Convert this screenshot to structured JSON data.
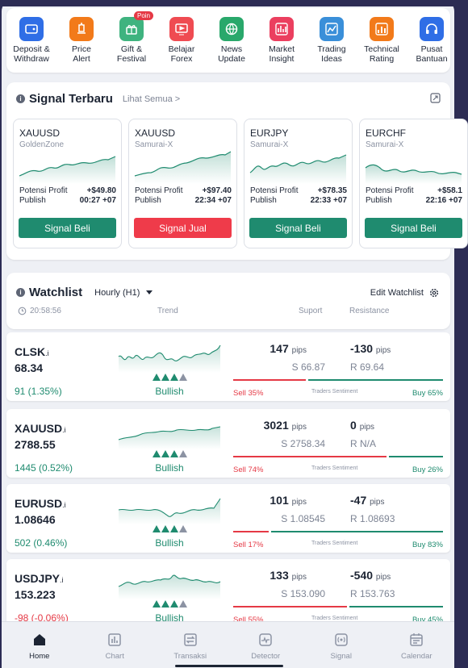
{
  "menu": [
    {
      "label": "Deposit &\nWithdraw",
      "icon": "wallet-icon",
      "color": "#2f6ee6"
    },
    {
      "label": "Price\nAlert",
      "icon": "alert-icon",
      "color": "#f27a1a"
    },
    {
      "label": "Gift &\nFestival",
      "icon": "gift-icon",
      "color": "#3fb37f",
      "badge": "Poin"
    },
    {
      "label": "Belajar\nForex",
      "icon": "video-icon",
      "color": "#ef4b52"
    },
    {
      "label": "News\nUpdate",
      "icon": "globe-icon",
      "color": "#29a86b"
    },
    {
      "label": "Market\nInsight",
      "icon": "insight-icon",
      "color": "#eb3f5f"
    },
    {
      "label": "Trading\nIdeas",
      "icon": "ideas-icon",
      "color": "#3a8fd9"
    },
    {
      "label": "Technical\nRating",
      "icon": "rating-icon",
      "color": "#f27a1a"
    },
    {
      "label": "Pusat\nBantuan",
      "icon": "headset-icon",
      "color": "#2f6ee6"
    }
  ],
  "signals": {
    "title": "Signal Terbaru",
    "link": "Lihat Semua >",
    "profit_label": "Potensi Profit",
    "publish_label": "Publish",
    "cards": [
      {
        "symbol": "XAUUSD",
        "source": "GoldenZone",
        "profit": "+$49.80",
        "publish": "00:27 +07",
        "button": "Signal Beli",
        "type": "buy"
      },
      {
        "symbol": "XAUUSD",
        "source": "Samurai-X",
        "profit": "+$97.40",
        "publish": "22:34 +07",
        "button": "Signal Jual",
        "type": "sell"
      },
      {
        "symbol": "EURJPY",
        "source": "Samurai-X",
        "profit": "+$78.35",
        "publish": "22:33 +07",
        "button": "Signal Beli",
        "type": "buy"
      },
      {
        "symbol": "EURCHF",
        "source": "Samurai-X",
        "profit": "+$58.1",
        "publish": "22:16 +07",
        "button": "Signal Beli",
        "type": "buy"
      }
    ]
  },
  "watchlist": {
    "title": "Watchlist",
    "timeframe": "Hourly (H1)",
    "edit": "Edit Watchlist",
    "time": "20:58:56",
    "col_trend": "Trend",
    "col_support": "Suport",
    "col_resistance": "Resistance",
    "pips_label": "pips",
    "sentiment_label": "Traders Sentiment",
    "rows": [
      {
        "symbol": "CLSK",
        "suffix": ".i",
        "price": "68.34",
        "change": "91 (1.35%)",
        "change_dir": "up",
        "trend": "Bullish",
        "support_pips": "147",
        "support": "S 66.87",
        "resistance_pips": "-130",
        "resistance": "R 69.64",
        "sell": "Sell 35%",
        "buy": "Buy 65%",
        "sell_pct": 35
      },
      {
        "symbol": "XAUUSD",
        "suffix": ".i",
        "price": "2788.55",
        "change": "1445 (0.52%)",
        "change_dir": "up",
        "trend": "Bullish",
        "support_pips": "3021",
        "support": "S 2758.34",
        "resistance_pips": "0",
        "resistance": "R N/A",
        "sell": "Sell 74%",
        "buy": "Buy 26%",
        "sell_pct": 74
      },
      {
        "symbol": "EURUSD",
        "suffix": ".i",
        "price": "1.08646",
        "change": "502 (0.46%)",
        "change_dir": "up",
        "trend": "Bullish",
        "support_pips": "101",
        "support": "S 1.08545",
        "resistance_pips": "-47",
        "resistance": "R 1.08693",
        "sell": "Sell 17%",
        "buy": "Buy 83%",
        "sell_pct": 17
      },
      {
        "symbol": "USDJPY",
        "suffix": ".i",
        "price": "153.223",
        "change": "-98 (-0.06%)",
        "change_dir": "down",
        "trend": "Bullish",
        "support_pips": "133",
        "support": "S 153.090",
        "resistance_pips": "-540",
        "resistance": "R 153.763",
        "sell": "Sell 55%",
        "buy": "Buy 45%",
        "sell_pct": 55
      }
    ]
  },
  "nav": [
    {
      "label": "Home",
      "icon": "home-icon",
      "active": true
    },
    {
      "label": "Chart",
      "icon": "chart-icon",
      "active": false
    },
    {
      "label": "Transaksi",
      "icon": "transaction-icon",
      "active": false
    },
    {
      "label": "Detector",
      "icon": "detector-icon",
      "active": false
    },
    {
      "label": "Signal",
      "icon": "signal-icon",
      "active": false
    },
    {
      "label": "Calendar",
      "icon": "calendar-icon",
      "active": false
    }
  ],
  "colors": {
    "buy": "#1f8b6f",
    "sell": "#e53945",
    "accent_green": "#1f8b6f"
  }
}
